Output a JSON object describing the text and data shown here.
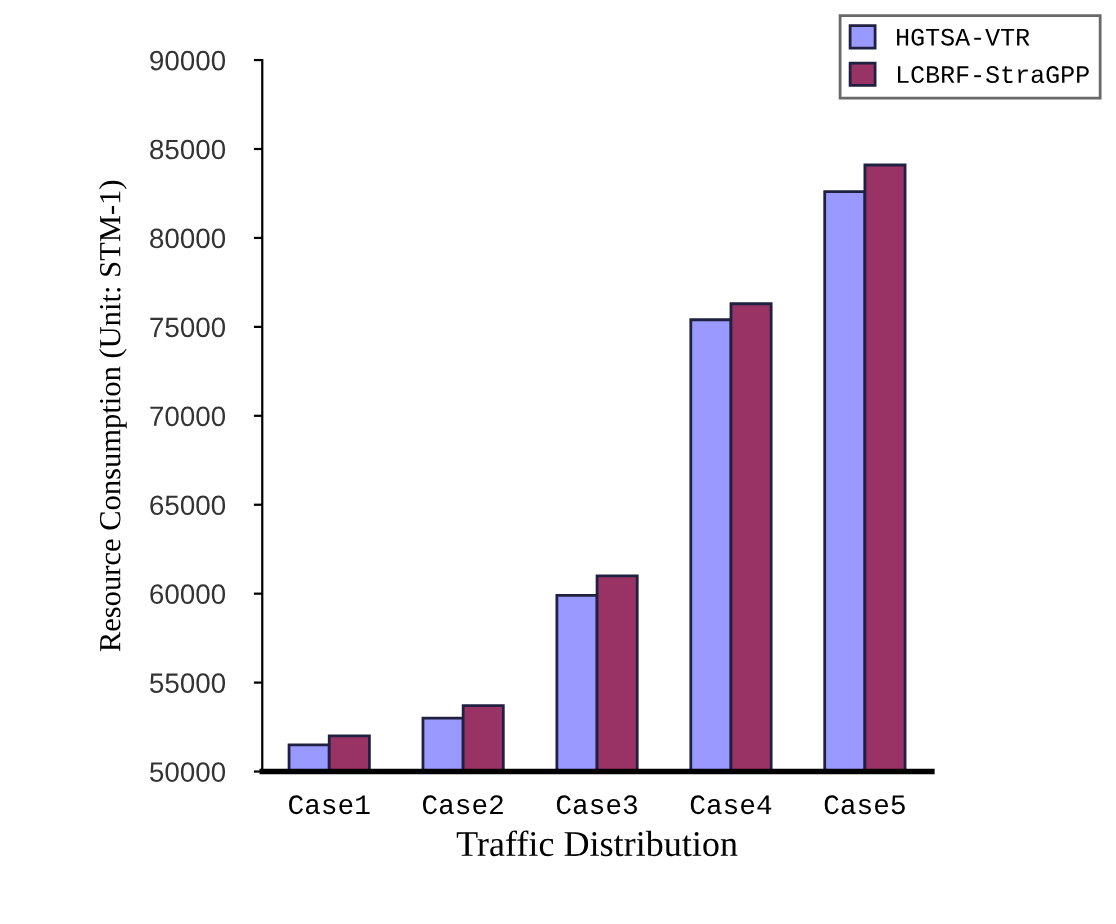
{
  "chart_data": {
    "type": "bar",
    "xlabel": "Traffic Distribution",
    "ylabel": "Resource Consumption (Unit: STM-1)",
    "categories": [
      "Case1",
      "Case2",
      "Case3",
      "Case4",
      "Case5"
    ],
    "series": [
      {
        "name": "HGTSA-VTR",
        "color": "#9999ff",
        "values": [
          51500,
          53000,
          59900,
          75400,
          82600
        ]
      },
      {
        "name": "LCBRF-StraGPP",
        "color": "#993366",
        "values": [
          52000,
          53700,
          61000,
          76300,
          84100
        ]
      }
    ],
    "ylim": [
      50000,
      90000
    ],
    "yticks": [
      50000,
      55000,
      60000,
      65000,
      70000,
      75000,
      80000,
      85000,
      90000
    ],
    "grid": false,
    "legend": "top right"
  }
}
